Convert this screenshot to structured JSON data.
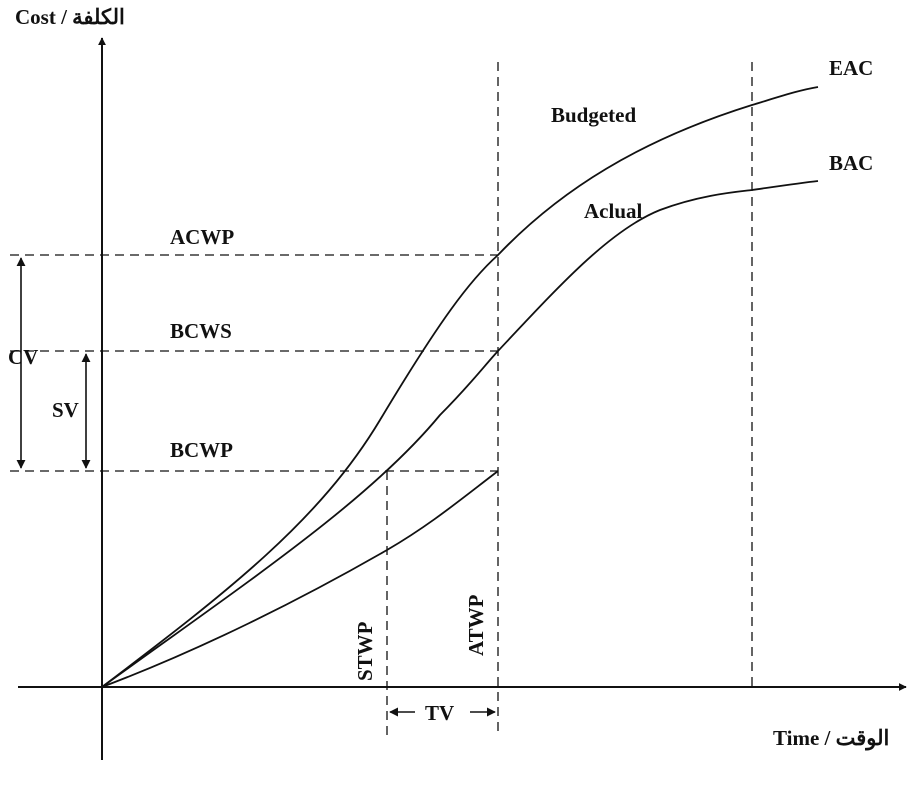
{
  "axes": {
    "y_label": "Cost / الكلفة",
    "x_label": "Time / الوقت"
  },
  "curves": {
    "eac": "EAC",
    "bac": "BAC",
    "budgeted": "Budgeted",
    "actual": "Aclual"
  },
  "levels": {
    "acwp": "ACWP",
    "bcws": "BCWS",
    "bcwp": "BCWP"
  },
  "variances": {
    "cv": "CV",
    "sv": "SV",
    "tv": "TV"
  },
  "time_markers": {
    "stwp": "STWP",
    "atwp": "ATWP"
  }
}
